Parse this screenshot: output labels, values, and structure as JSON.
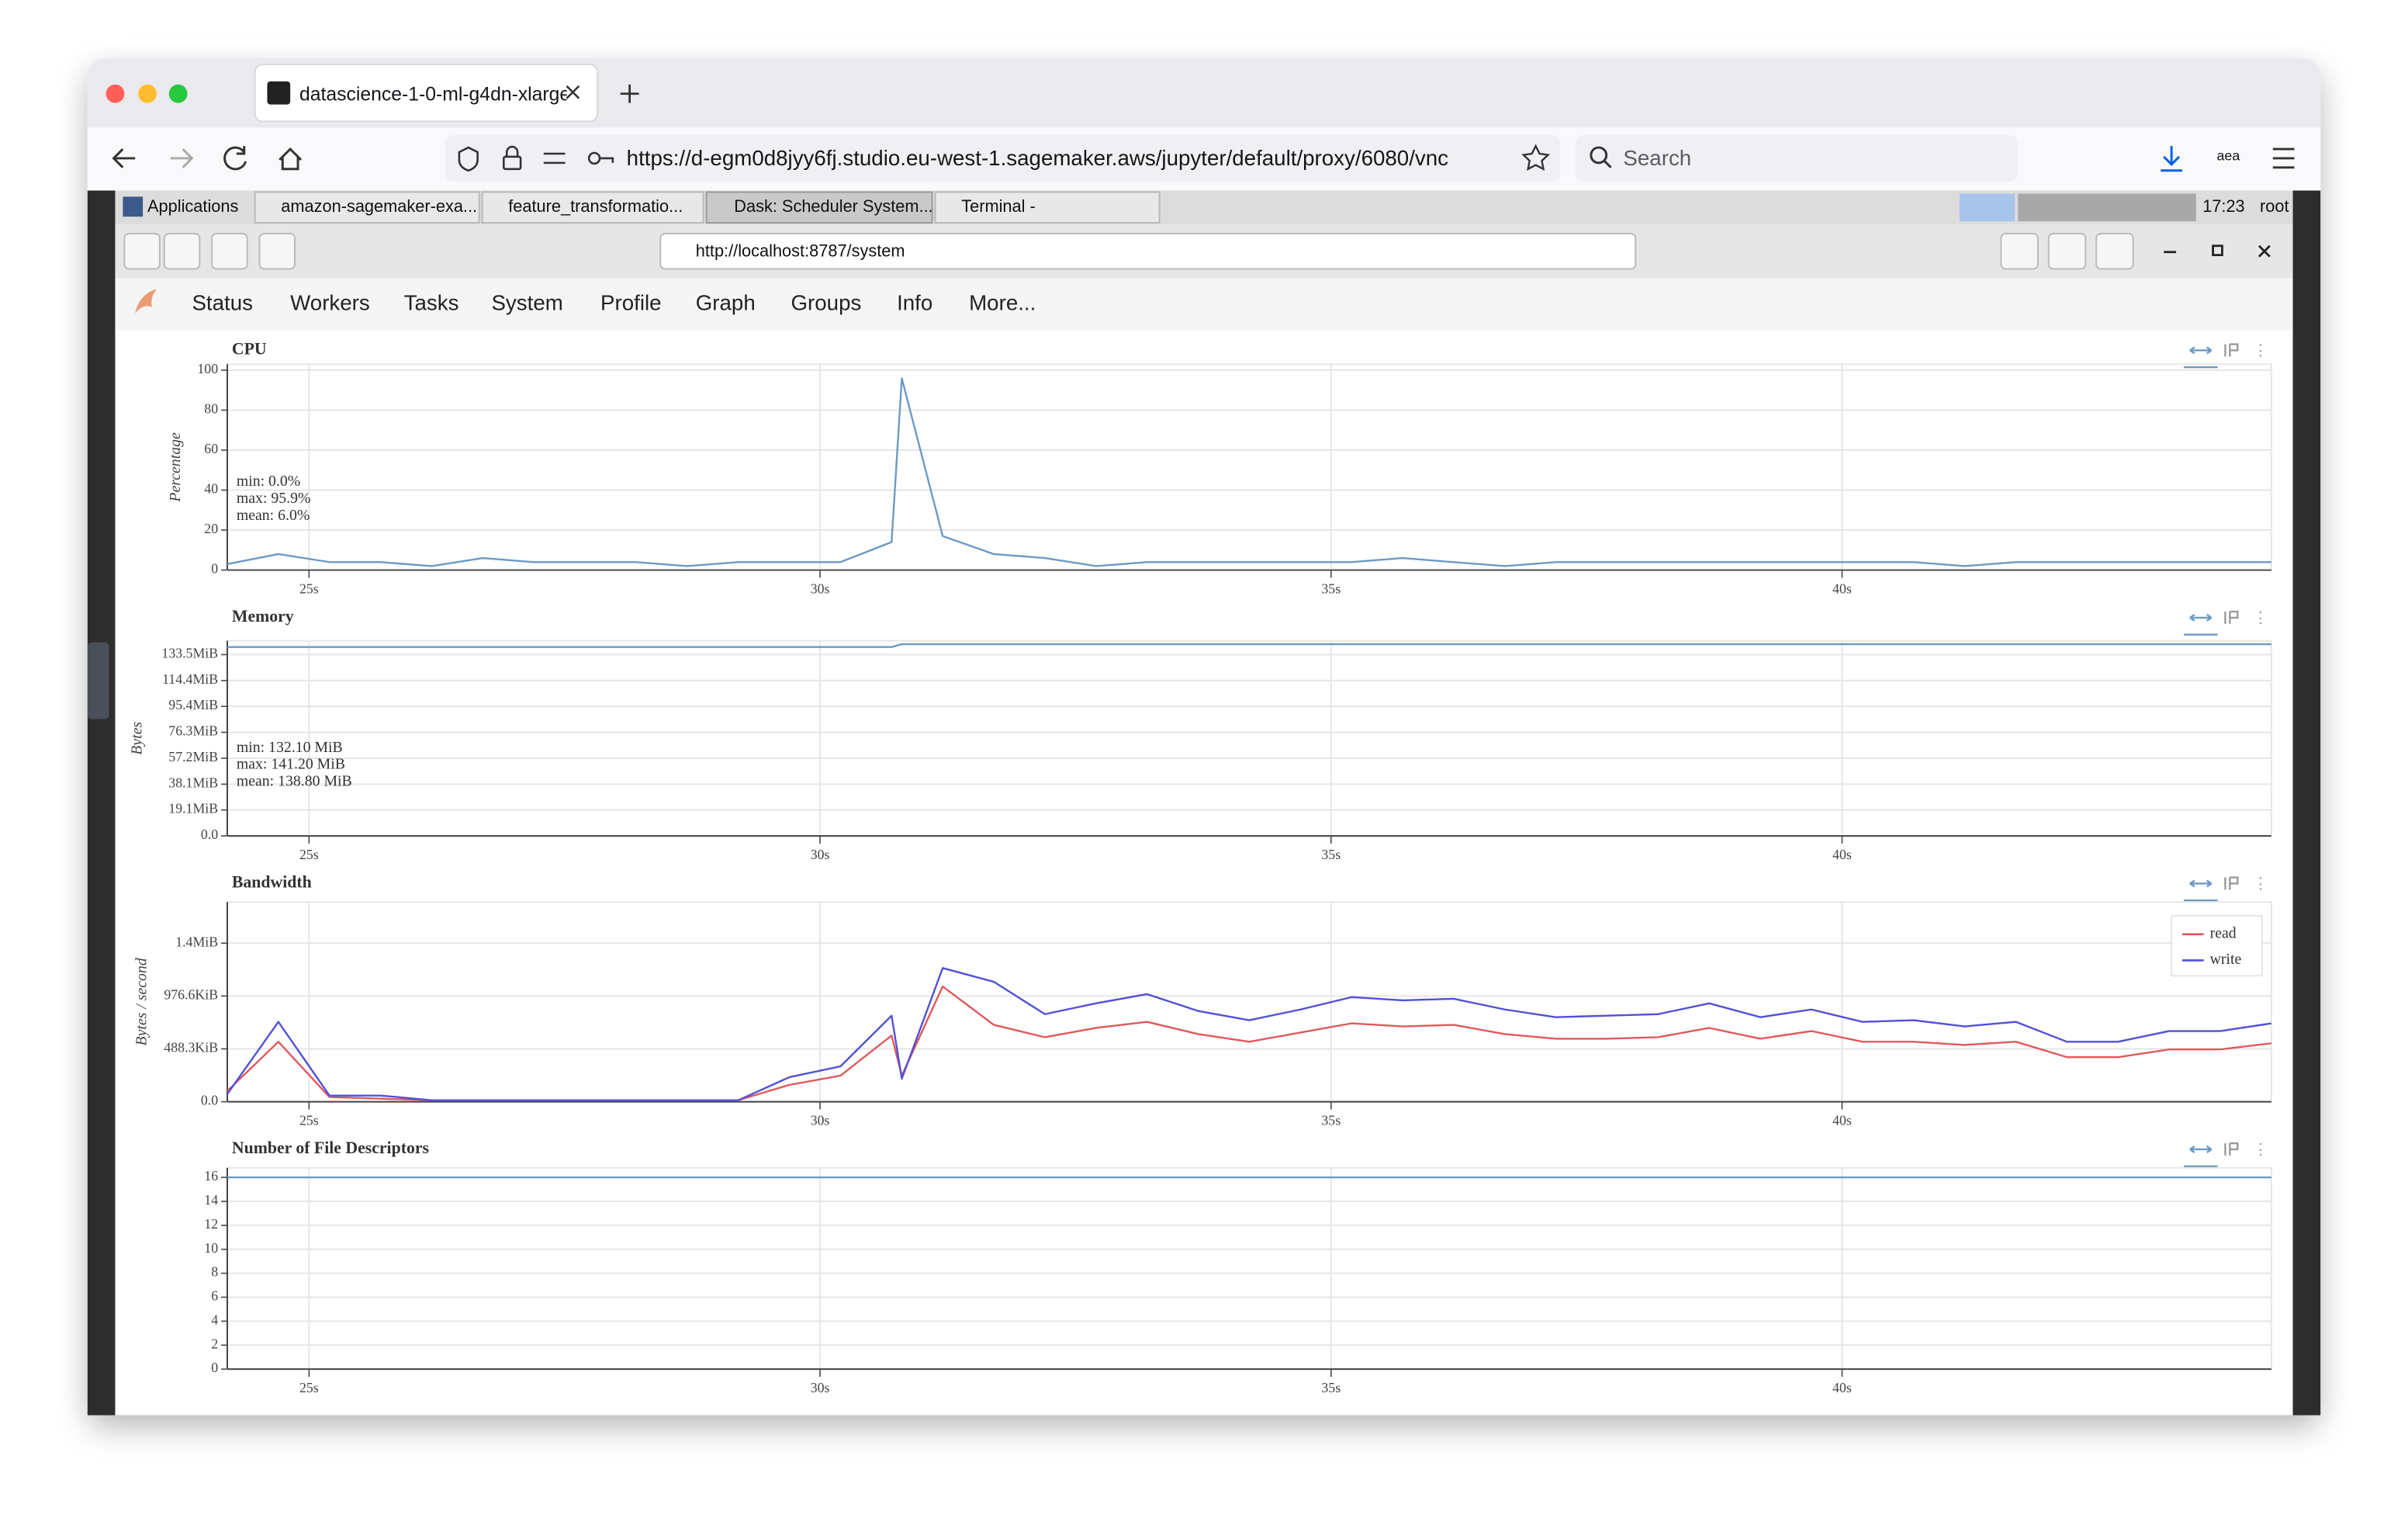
{
  "browser": {
    "tab_title": "datascience-1-0-ml-g4dn-xlarge",
    "url": "https://d-egm0d8jyy6fj.studio.eu-west-1.sagemaker.aws/jupyter/default/proxy/6080/vnc",
    "search_placeholder": "Search",
    "profile": "aea"
  },
  "vnc_taskbar": {
    "items": [
      "Applications",
      "amazon-sagemaker-exa...",
      "feature_transformatio...",
      "Dask: Scheduler System...",
      "Terminal -"
    ],
    "clock": "17:23",
    "user": "root"
  },
  "inner_browser": {
    "url": "http://localhost:8787/system"
  },
  "nav": [
    "Status",
    "Workers",
    "Tasks",
    "System",
    "Profile",
    "Graph",
    "Groups",
    "Info",
    "More..."
  ],
  "chart_data": [
    {
      "type": "line",
      "title": "CPU",
      "ylabel": "Percentage",
      "grid": true,
      "color": "#6b9ac4",
      "annotations": [
        "min: 0.0%",
        "max: 95.9%",
        "mean: 6.0%"
      ],
      "x": [
        24.2,
        24.7,
        25.2,
        25.7,
        26.2,
        26.7,
        27.2,
        27.7,
        28.2,
        28.7,
        29.2,
        29.7,
        30.2,
        30.7,
        30.8,
        31.2,
        31.7,
        32.2,
        32.7,
        33.2,
        33.7,
        34.2,
        34.7,
        35.2,
        35.7,
        36.2,
        36.7,
        37.2,
        37.7,
        38.2,
        38.7,
        39.2,
        39.7,
        40.2,
        40.7,
        41.2,
        41.7,
        42.2,
        42.7,
        43.2,
        43.7,
        44.2
      ],
      "values": [
        3,
        8,
        4,
        4,
        2,
        6,
        4,
        4,
        4,
        2,
        4,
        4,
        4,
        14,
        95.9,
        17,
        8,
        6,
        2,
        4,
        4,
        4,
        4,
        4,
        6,
        4,
        2,
        4,
        4,
        4,
        4,
        4,
        4,
        4,
        4,
        2,
        4,
        4,
        4,
        4,
        4,
        4
      ],
      "xlim": [
        24.2,
        44.2
      ],
      "xticks": [
        {
          "value": 25,
          "label": "25s"
        },
        {
          "value": 30,
          "label": "30s"
        },
        {
          "value": 35,
          "label": "35s"
        },
        {
          "value": 40,
          "label": "40s"
        }
      ],
      "ylim": [
        0,
        103
      ],
      "yticks": [
        0,
        20,
        40,
        60,
        80,
        100
      ]
    },
    {
      "type": "line",
      "title": "Memory",
      "ylabel": "Bytes",
      "grid": true,
      "color": "#6b9ac4",
      "annotations": [
        "min: 132.10 MiB",
        "max: 141.20 MiB",
        "mean: 138.80 MiB"
      ],
      "x": [
        24.2,
        30.7,
        30.8,
        44.2
      ],
      "values": [
        139.1,
        139.1,
        141.2,
        141.2
      ],
      "xlim": [
        24.2,
        44.2
      ],
      "xticks": [
        {
          "value": 25,
          "label": "25s"
        },
        {
          "value": 30,
          "label": "30s"
        },
        {
          "value": 35,
          "label": "35s"
        },
        {
          "value": 40,
          "label": "40s"
        }
      ],
      "ylim": [
        0,
        143.7
      ],
      "yticks": [
        {
          "value": 0,
          "label": "0.0"
        },
        {
          "value": 19.1,
          "label": "19.1MiB"
        },
        {
          "value": 38.1,
          "label": "38.1MiB"
        },
        {
          "value": 57.2,
          "label": "57.2MiB"
        },
        {
          "value": 76.3,
          "label": "76.3MiB"
        },
        {
          "value": 95.4,
          "label": "95.4MiB"
        },
        {
          "value": 114.4,
          "label": "114.4MiB"
        },
        {
          "value": 133.5,
          "label": "133.5MiB"
        }
      ]
    },
    {
      "type": "line",
      "title": "Bandwidth",
      "ylabel": "Bytes / second",
      "grid": true,
      "legend": "top-right",
      "x": [
        24.2,
        24.7,
        25.2,
        25.7,
        26.2,
        26.7,
        27.2,
        27.7,
        28.2,
        28.7,
        29.2,
        29.7,
        30.2,
        30.7,
        30.8,
        31.2,
        31.7,
        32.2,
        32.7,
        33.2,
        33.7,
        34.2,
        34.7,
        35.2,
        35.7,
        36.2,
        36.7,
        37.2,
        37.7,
        38.2,
        38.7,
        39.2,
        39.7,
        40.2,
        40.7,
        41.2,
        41.7,
        42.2,
        42.7,
        43.2,
        43.7,
        44.2
      ],
      "series": [
        {
          "name": "read",
          "color": "#e0585c",
          "values": [
            99,
            554,
            43,
            28,
            14,
            14,
            14,
            14,
            14,
            14,
            14,
            156,
            241,
            611,
            241,
            1065,
            710,
            596,
            682,
            738,
            625,
            554,
            639,
            724,
            696,
            710,
            625,
            582,
            582,
            596,
            682,
            582,
            653,
            554,
            554,
            525,
            554,
            412,
            412,
            483,
            483,
            540
          ]
        },
        {
          "name": "write",
          "color": "#5050d8",
          "values": [
            71,
            738,
            57,
            57,
            14,
            14,
            14,
            14,
            14,
            14,
            14,
            227,
            327,
            795,
            213,
            1235,
            1108,
            809,
            909,
            994,
            838,
            753,
            852,
            966,
            937,
            951,
            852,
            781,
            795,
            809,
            909,
            781,
            852,
            738,
            753,
            696,
            738,
            554,
            554,
            653,
            653,
            724
          ]
        }
      ],
      "xlim": [
        24.2,
        44.2
      ],
      "xticks": [
        {
          "value": 25,
          "label": "25s"
        },
        {
          "value": 30,
          "label": "30s"
        },
        {
          "value": 35,
          "label": "35s"
        },
        {
          "value": 40,
          "label": "40s"
        }
      ],
      "ylim": [
        0,
        1845
      ],
      "yticks": [
        {
          "value": 0,
          "label": "0.0"
        },
        {
          "value": 488.3,
          "label": "488.3KiB"
        },
        {
          "value": 976.6,
          "label": "976.6KiB"
        },
        {
          "value": 1464.8,
          "label": "1.4MiB"
        }
      ]
    },
    {
      "type": "line",
      "title": "Number of File Descriptors",
      "grid": true,
      "color": "#6b9ac4",
      "x": [
        24.2,
        44.2
      ],
      "values": [
        16,
        16
      ],
      "xlim": [
        24.2,
        44.2
      ],
      "xticks": [
        {
          "value": 25,
          "label": "25s"
        },
        {
          "value": 30,
          "label": "30s"
        },
        {
          "value": 35,
          "label": "35s"
        },
        {
          "value": 40,
          "label": "40s"
        }
      ],
      "ylim": [
        0,
        16.8
      ],
      "yticks": [
        0,
        2,
        4,
        6,
        8,
        10,
        12,
        14,
        16
      ]
    }
  ]
}
